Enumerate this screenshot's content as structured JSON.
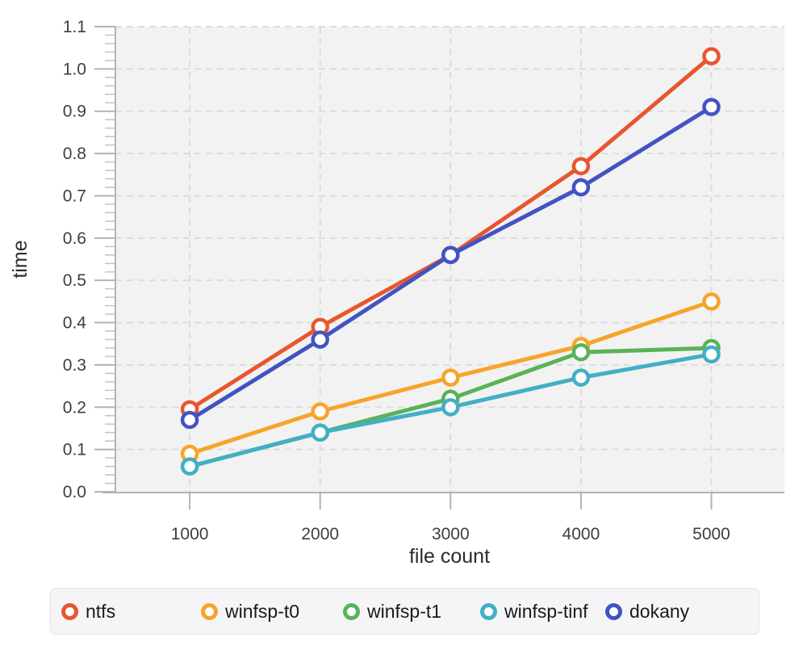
{
  "chart_data": {
    "type": "line",
    "x": [
      1000,
      2000,
      3000,
      4000,
      5000
    ],
    "x_ticks": [
      1000,
      2000,
      3000,
      4000,
      5000
    ],
    "series": [
      {
        "name": "ntfs",
        "color": "#e8562e",
        "values": [
          0.195,
          0.39,
          0.56,
          0.77,
          1.03
        ]
      },
      {
        "name": "winfsp-t0",
        "color": "#f7a42a",
        "values": [
          0.09,
          0.19,
          0.27,
          0.345,
          0.45
        ]
      },
      {
        "name": "winfsp-t1",
        "color": "#58b356",
        "values": [
          0.06,
          0.14,
          0.22,
          0.33,
          0.34
        ]
      },
      {
        "name": "winfsp-tinf",
        "color": "#42afc5",
        "values": [
          0.06,
          0.14,
          0.2,
          0.27,
          0.325
        ]
      },
      {
        "name": "dokany",
        "color": "#4253c3",
        "values": [
          0.17,
          0.36,
          0.56,
          0.72,
          0.91
        ]
      }
    ],
    "title": "",
    "xlabel": "file count",
    "ylabel": "time",
    "xlim": [
      430,
      5560
    ],
    "ylim": [
      0,
      1.1
    ],
    "y_tick_step": 0.1,
    "y_minor_step": 0.02,
    "grid": "dashed",
    "legend_position": "bottom",
    "colors": {
      "plot_bg": "#f2f2f2",
      "grid": "#dcdcdc",
      "axis": "#b3b3b3",
      "minor_tick": "#c6c6c6",
      "tick_label": "#3e3e3e",
      "axis_title": "#2b2b2b",
      "marker_fill": "#ffffff",
      "legend_bg": "#f5f5f7",
      "legend_border": "#e3e3e6",
      "legend_text": "#1a1a1a"
    }
  }
}
